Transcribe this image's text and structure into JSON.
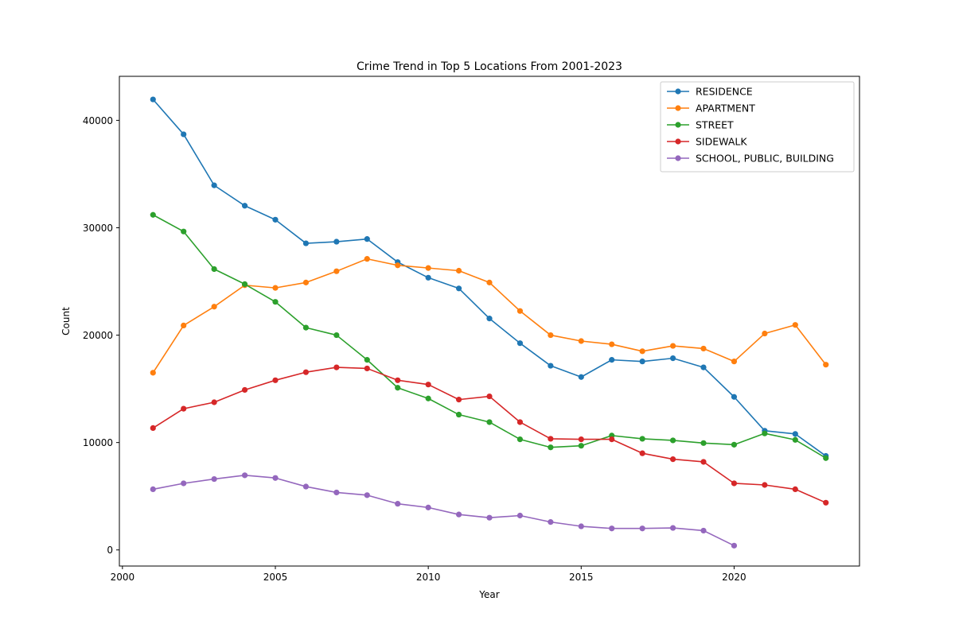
{
  "chart_data": {
    "type": "line",
    "title": "Crime Trend in Top 5 Locations From 2001-2023",
    "xlabel": "Year",
    "ylabel": "Count",
    "xlim": [
      1999.9,
      2024.1
    ],
    "ylim": [
      -1500,
      44100
    ],
    "x_ticks": [
      2000,
      2005,
      2010,
      2015,
      2020
    ],
    "y_ticks": [
      0,
      10000,
      20000,
      30000,
      40000
    ],
    "grid": false,
    "legend_position": "top-right",
    "markers": true,
    "series": [
      {
        "name": "RESIDENCE",
        "color": "#1f77b4",
        "x": [
          2001,
          2002,
          2003,
          2004,
          2005,
          2006,
          2007,
          2008,
          2009,
          2010,
          2011,
          2012,
          2013,
          2014,
          2015,
          2016,
          2017,
          2018,
          2019,
          2020,
          2021,
          2022,
          2023
        ],
        "values": [
          41950,
          38700,
          33950,
          32050,
          30750,
          28550,
          28700,
          28950,
          26800,
          25350,
          24350,
          21550,
          19250,
          17150,
          16100,
          17700,
          17550,
          17850,
          17000,
          14250,
          11100,
          10800,
          8750
        ]
      },
      {
        "name": "APARTMENT",
        "color": "#ff7f0e",
        "x": [
          2001,
          2002,
          2003,
          2004,
          2005,
          2006,
          2007,
          2008,
          2009,
          2010,
          2011,
          2012,
          2013,
          2014,
          2015,
          2016,
          2017,
          2018,
          2019,
          2020,
          2021,
          2022,
          2023
        ],
        "values": [
          16500,
          20900,
          22650,
          24650,
          24400,
          24900,
          25950,
          27100,
          26500,
          26250,
          26000,
          24900,
          22250,
          20000,
          19450,
          19150,
          18500,
          19000,
          18750,
          17550,
          20150,
          20950,
          17250
        ]
      },
      {
        "name": "STREET",
        "color": "#2ca02c",
        "x": [
          2001,
          2002,
          2003,
          2004,
          2005,
          2006,
          2007,
          2008,
          2009,
          2010,
          2011,
          2012,
          2013,
          2014,
          2015,
          2016,
          2017,
          2018,
          2019,
          2020,
          2021,
          2022,
          2023
        ],
        "values": [
          31200,
          29650,
          26150,
          24750,
          23100,
          20700,
          20000,
          17700,
          15100,
          14100,
          12600,
          11900,
          10300,
          9550,
          9700,
          10650,
          10350,
          10200,
          9950,
          9800,
          10850,
          10250,
          8550
        ]
      },
      {
        "name": "SIDEWALK",
        "color": "#d62728",
        "x": [
          2001,
          2002,
          2003,
          2004,
          2005,
          2006,
          2007,
          2008,
          2009,
          2010,
          2011,
          2012,
          2013,
          2014,
          2015,
          2016,
          2017,
          2018,
          2019,
          2020,
          2021,
          2022,
          2023
        ],
        "values": [
          11350,
          13150,
          13750,
          14900,
          15800,
          16550,
          17000,
          16900,
          15800,
          15400,
          14000,
          14300,
          11900,
          10350,
          10300,
          10300,
          9000,
          8450,
          8200,
          6200,
          6050,
          5650,
          4400
        ]
      },
      {
        "name": "SCHOOL, PUBLIC, BUILDING",
        "color": "#9467bd",
        "x": [
          2001,
          2002,
          2003,
          2004,
          2005,
          2006,
          2007,
          2008,
          2009,
          2010,
          2011,
          2012,
          2013,
          2014,
          2015,
          2016,
          2017,
          2018,
          2019,
          2020
        ],
        "values": [
          5650,
          6200,
          6600,
          6950,
          6700,
          5900,
          5350,
          5100,
          4300,
          3950,
          3300,
          3000,
          3200,
          2600,
          2200,
          2000,
          2000,
          2050,
          1800,
          400
        ]
      }
    ]
  }
}
